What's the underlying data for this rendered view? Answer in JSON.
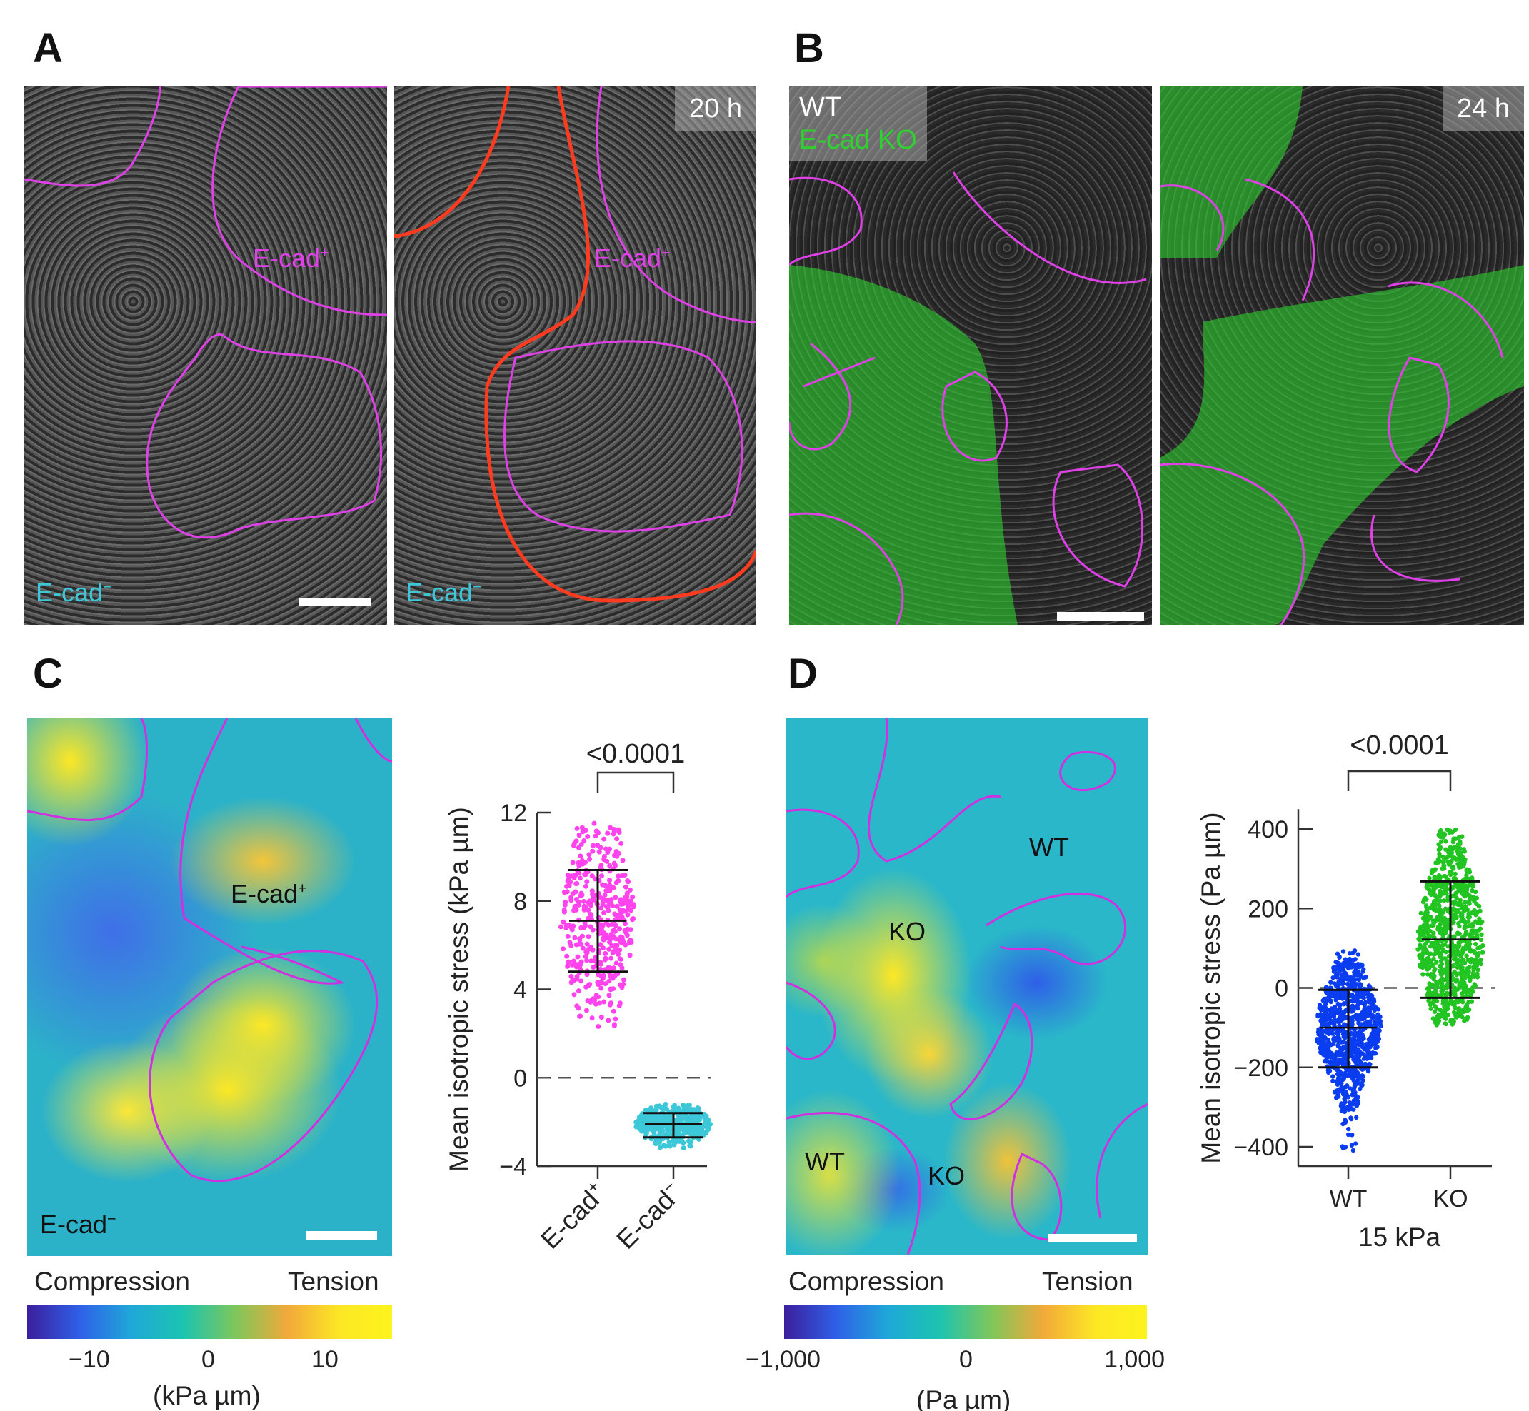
{
  "panels": {
    "A": {
      "label": "A",
      "time": "20 h",
      "ecad_pos": "E-cad",
      "ecad_neg": "E-cad",
      "sup_pos": "+",
      "sup_neg": "−"
    },
    "B": {
      "label": "B",
      "wt": "WT",
      "ko": "E-cad KO",
      "time": "24 h"
    },
    "C": {
      "label": "C",
      "ecad_pos": "E-cad",
      "ecad_neg": "E-cad",
      "sup_pos": "+",
      "sup_neg": "−",
      "colorbar": {
        "left": "Compression",
        "right": "Tension",
        "ticks": [
          "−10",
          "0",
          "10"
        ],
        "unit": "(kPa µm)"
      }
    },
    "D": {
      "label": "D",
      "regions": [
        "WT",
        "KO",
        "WT",
        "KO"
      ],
      "colorbar": {
        "left": "Compression",
        "right": "Tension",
        "ticks": [
          "−1,000",
          "0",
          "1,000"
        ],
        "unit": "(Pa µm)"
      }
    }
  },
  "colors": {
    "outline_magenta": "#e040e8",
    "outline_red": "#ff3b1f",
    "ko_green": "#2fd12f",
    "ecad_pos": "#ff44ee",
    "ecad_neg": "#3cc8d8",
    "wt_blue": "#0a3cf0",
    "ko_green_dots": "#22c422"
  },
  "chart_data": [
    {
      "type": "scatter",
      "subtype": "dot-plot with mean ± SD",
      "ylabel": "Mean isotropic stress (kPa µm)",
      "ylim": [
        -4,
        12
      ],
      "yticks": [
        "12",
        "8",
        "4",
        "0",
        "−4"
      ],
      "categories": [
        "E-cad+",
        "E-cad−"
      ],
      "category_labels": [
        "E-cad",
        "E-cad"
      ],
      "category_sups": [
        "+",
        "−"
      ],
      "series": [
        {
          "category": "E-cad+",
          "mean": 7.1,
          "sd_low": 4.8,
          "sd_high": 9.4,
          "min": 2.3,
          "max": 11.8,
          "color": "#ff44ee"
        },
        {
          "category": "E-cad−",
          "mean": -2.1,
          "sd_low": -2.7,
          "sd_high": -1.6,
          "min": -3.2,
          "max": -1.2,
          "color": "#3cc8d8"
        }
      ],
      "reference_line": 0,
      "significance": "<0.0001"
    },
    {
      "type": "scatter",
      "subtype": "dot-plot with mean ± SD",
      "ylabel": "Mean isotropic stress (Pa µm)",
      "ylim": [
        -450,
        450
      ],
      "yticks": [
        "400",
        "200",
        "0",
        "−200",
        "−400"
      ],
      "categories": [
        "WT",
        "KO"
      ],
      "xlabel": "15 kPa",
      "series": [
        {
          "category": "WT",
          "mean": -100,
          "sd_low": -200,
          "sd_high": -5,
          "min": -420,
          "max": 95,
          "color": "#0a3cf0"
        },
        {
          "category": "KO",
          "mean": 122,
          "sd_low": -25,
          "sd_high": 268,
          "min": -95,
          "max": 400,
          "color": "#22c422"
        }
      ],
      "reference_line": 0,
      "significance": "<0.0001"
    }
  ]
}
